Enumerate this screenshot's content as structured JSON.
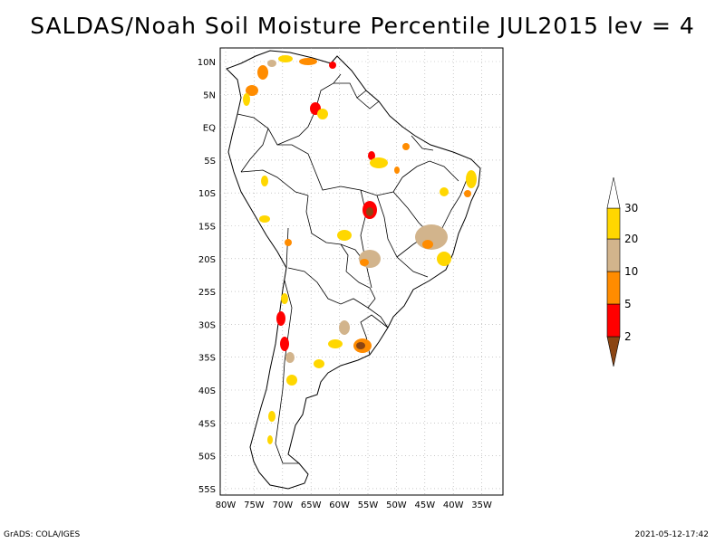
{
  "title": "SALDAS/Noah Soil Moisture Percentile JUL2015 lev = 4",
  "latitude_labels": [
    "10N",
    "5N",
    "EQ",
    "5S",
    "10S",
    "15S",
    "20S",
    "25S",
    "30S",
    "35S",
    "40S",
    "45S",
    "50S",
    "55S"
  ],
  "longitude_labels": [
    "80W",
    "75W",
    "70W",
    "65W",
    "60W",
    "55W",
    "50W",
    "45W",
    "40W",
    "35W"
  ],
  "colorbar": {
    "labels": [
      "2",
      "5",
      "10",
      "20",
      "30"
    ],
    "colors": [
      "#8b4513",
      "#ff0000",
      "#ff8c00",
      "#d2b48c",
      "#ffd700",
      "#ffffff"
    ]
  },
  "footer": {
    "left": "GrADS: COLA/IGES",
    "right": "2021-05-12-17:42"
  }
}
